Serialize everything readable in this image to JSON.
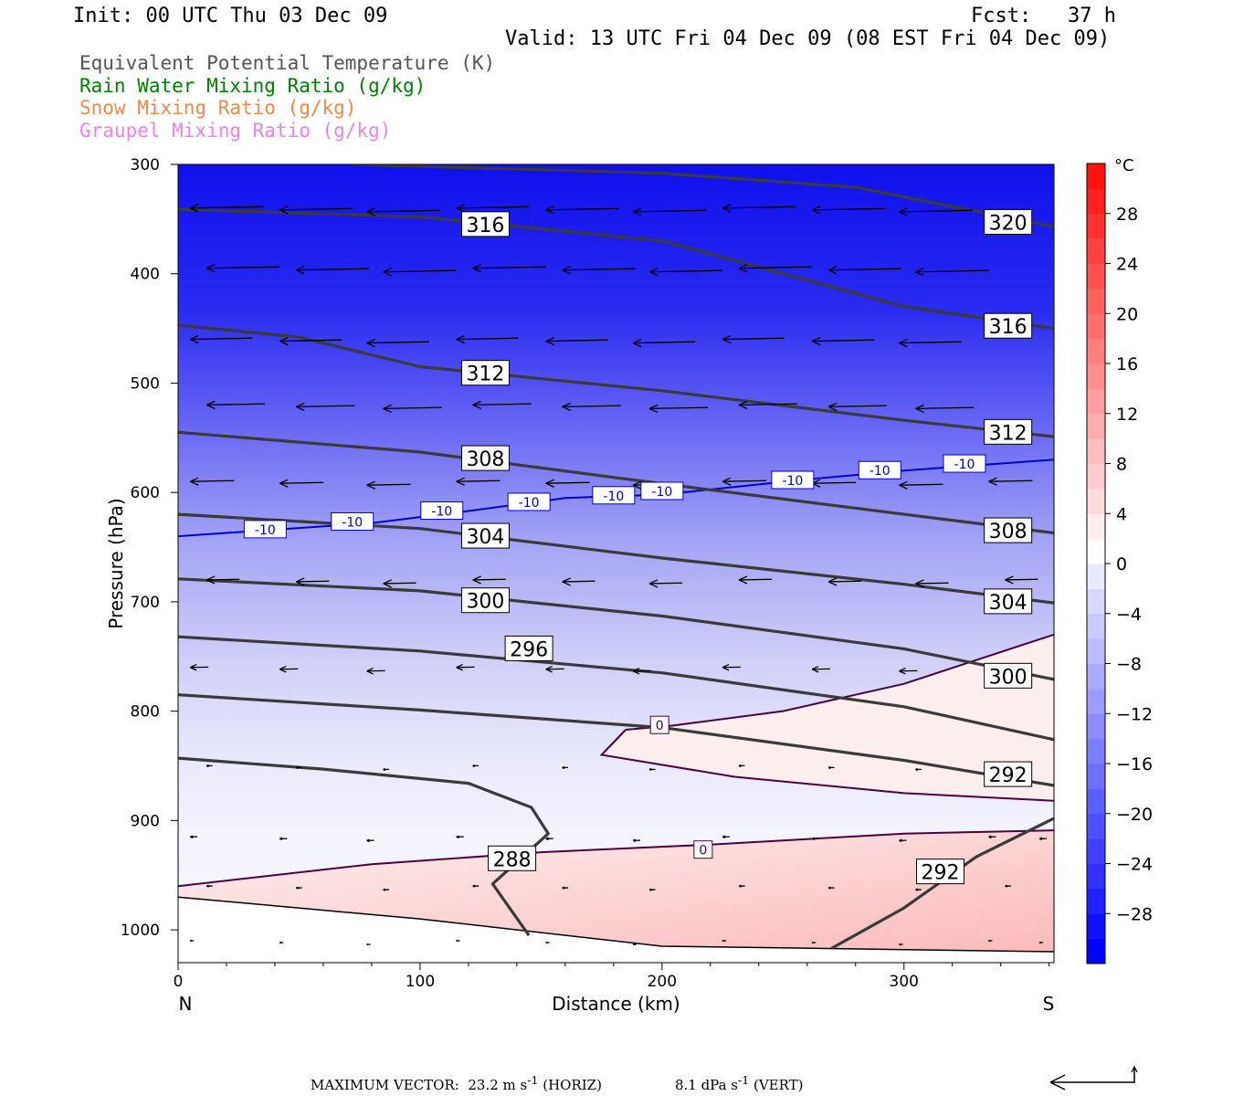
{
  "header": {
    "init": "Init: 00 UTC Thu 03 Dec 09",
    "fcst": "Fcst:   37 h",
    "valid": "Valid: 13 UTC Fri 04 Dec 09 (08 EST Fri 04 Dec 09)"
  },
  "legend": [
    {
      "label": "Equivalent Potential Temperature (K)",
      "color": "#555555"
    },
    {
      "label": "Rain Water Mixing Ratio (g/kg)",
      "color": "#008000"
    },
    {
      "label": "Snow Mixing Ratio (g/kg)",
      "color": "#f08a4b"
    },
    {
      "label": "Graupel Mixing Ratio (g/kg)",
      "color": "#ee82ee"
    }
  ],
  "footer": {
    "max_vector_label": "MAXIMUM VECTOR:",
    "horiz_value": "23.2 m s",
    "horiz_exp": "-1",
    "horiz_tag": "(HORIZ)",
    "vert_value": "8.1 dPa s",
    "vert_exp": "-1",
    "vert_tag": "(VERT)"
  },
  "chart_data": {
    "type": "contour-cross-section",
    "xlabel": "Distance (km)",
    "ylabel": "Pressure (hPa)",
    "xlim": [
      0,
      362
    ],
    "ylim": [
      1030,
      300
    ],
    "xticks": [
      0,
      100,
      200,
      300
    ],
    "yticks": [
      300,
      400,
      500,
      600,
      700,
      800,
      900,
      1000
    ],
    "x_left_label": "N",
    "x_right_label": "S",
    "colorbar": {
      "unit": "°C",
      "labels": [
        28,
        24,
        20,
        16,
        12,
        8,
        4,
        0,
        -4,
        -8,
        -12,
        -16,
        -20,
        -24,
        -28
      ],
      "range": [
        -32,
        32
      ]
    },
    "theta_e_contours": [
      {
        "level": 288,
        "points": [
          [
            0,
            843
          ],
          [
            60,
            853
          ],
          [
            120,
            866
          ],
          [
            146,
            888
          ],
          [
            153,
            912
          ],
          [
            130,
            958
          ],
          [
            145,
            1005
          ]
        ],
        "label_at": [
          138,
          935
        ]
      },
      {
        "level": 292,
        "points": [
          [
            0,
            785
          ],
          [
            100,
            799
          ],
          [
            200,
            815
          ],
          [
            300,
            845
          ],
          [
            362,
            868
          ]
        ],
        "label_at": [
          343,
          858
        ]
      },
      {
        "level": 292,
        "points": [
          [
            362,
            898
          ],
          [
            330,
            933
          ],
          [
            300,
            980
          ],
          [
            270,
            1017
          ]
        ],
        "label_at": [
          315,
          947
        ]
      },
      {
        "level": 296,
        "points": [
          [
            0,
            732
          ],
          [
            100,
            745
          ],
          [
            200,
            765
          ],
          [
            300,
            796
          ],
          [
            362,
            826
          ]
        ],
        "label_at": [
          145,
          743
        ]
      },
      {
        "level": 300,
        "points": [
          [
            0,
            679
          ],
          [
            100,
            690
          ],
          [
            200,
            713
          ],
          [
            300,
            743
          ],
          [
            362,
            771
          ]
        ],
        "label_at": [
          127,
          699
        ]
      },
      {
        "level": 304,
        "points": [
          [
            0,
            620
          ],
          [
            100,
            633
          ],
          [
            200,
            660
          ],
          [
            300,
            684
          ],
          [
            362,
            701
          ]
        ],
        "label_at": [
          127,
          640
        ]
      },
      {
        "level": 308,
        "points": [
          [
            0,
            545
          ],
          [
            100,
            563
          ],
          [
            200,
            592
          ],
          [
            300,
            620
          ],
          [
            362,
            637
          ]
        ],
        "label_at": [
          127,
          569
        ]
      },
      {
        "level": 312,
        "points": [
          [
            0,
            447
          ],
          [
            50,
            458
          ],
          [
            100,
            485
          ],
          [
            200,
            507
          ],
          [
            300,
            534
          ],
          [
            362,
            549
          ]
        ],
        "label_at": [
          127,
          491
        ]
      },
      {
        "level": 316,
        "points": [
          [
            0,
            341
          ],
          [
            100,
            348
          ],
          [
            200,
            370
          ],
          [
            300,
            430
          ],
          [
            362,
            450
          ]
        ],
        "label_at": [
          127,
          355
        ]
      },
      {
        "level": 320,
        "points": [
          [
            72,
            300
          ],
          [
            200,
            308
          ],
          [
            280,
            321
          ],
          [
            362,
            357
          ]
        ],
        "label_at": [
          343,
          353
        ]
      }
    ],
    "theta_e_labels": [
      {
        "text": "316",
        "x": 127,
        "p": 355
      },
      {
        "text": "320",
        "x": 343,
        "p": 353
      },
      {
        "text": "316",
        "x": 343,
        "p": 448
      },
      {
        "text": "312",
        "x": 127,
        "p": 491
      },
      {
        "text": "312",
        "x": 343,
        "p": 545
      },
      {
        "text": "308",
        "x": 127,
        "p": 569
      },
      {
        "text": "308",
        "x": 343,
        "p": 635
      },
      {
        "text": "304",
        "x": 127,
        "p": 640
      },
      {
        "text": "304",
        "x": 343,
        "p": 700
      },
      {
        "text": "300",
        "x": 127,
        "p": 699
      },
      {
        "text": "300",
        "x": 343,
        "p": 768
      },
      {
        "text": "296",
        "x": 145,
        "p": 743
      },
      {
        "text": "292",
        "x": 343,
        "p": 858
      },
      {
        "text": "292",
        "x": 315,
        "p": 947
      },
      {
        "text": "288",
        "x": 138,
        "p": 935
      }
    ],
    "temp_contours": [
      {
        "level": -10,
        "color": "#0000cc",
        "points": [
          [
            0,
            640
          ],
          [
            80,
            628
          ],
          [
            120,
            617
          ],
          [
            160,
            605
          ],
          [
            200,
            602
          ],
          [
            260,
            588
          ],
          [
            300,
            580
          ],
          [
            362,
            570
          ]
        ]
      },
      {
        "level": 0,
        "color": "#4b0040",
        "points": [
          [
            185,
            817
          ],
          [
            205,
            813
          ],
          [
            250,
            800
          ],
          [
            300,
            775
          ],
          [
            362,
            730
          ]
        ]
      },
      {
        "level": 0,
        "color": "#4b0040",
        "points": [
          [
            185,
            817
          ],
          [
            175,
            840
          ],
          [
            230,
            860
          ],
          [
            300,
            875
          ],
          [
            362,
            882
          ]
        ]
      },
      {
        "level": 0,
        "color": "#4b0040",
        "points": [
          [
            0,
            960
          ],
          [
            80,
            940
          ],
          [
            150,
            929
          ],
          [
            220,
            922
          ],
          [
            300,
            912
          ],
          [
            362,
            909
          ]
        ]
      }
    ],
    "temp_labels": [
      {
        "text": "-10",
        "x": 36,
        "p": 634
      },
      {
        "text": "-10",
        "x": 72,
        "p": 627
      },
      {
        "text": "-10",
        "x": 109,
        "p": 617
      },
      {
        "text": "-10",
        "x": 145,
        "p": 609
      },
      {
        "text": "-10",
        "x": 180,
        "p": 603
      },
      {
        "text": "-10",
        "x": 200,
        "p": 599
      },
      {
        "text": "-10",
        "x": 254,
        "p": 589
      },
      {
        "text": "-10",
        "x": 290,
        "p": 580
      },
      {
        "text": "-10",
        "x": 325,
        "p": 574
      },
      {
        "text": "0",
        "x": 199,
        "p": 813
      },
      {
        "text": "0",
        "x": 217,
        "p": 927
      }
    ],
    "wind_rows": [
      {
        "p": 340,
        "speed": 1.0
      },
      {
        "p": 395,
        "speed": 1.0
      },
      {
        "p": 460,
        "speed": 0.85
      },
      {
        "p": 520,
        "speed": 0.8
      },
      {
        "p": 590,
        "speed": 0.6
      },
      {
        "p": 680,
        "speed": 0.45
      },
      {
        "p": 760,
        "speed": 0.25
      },
      {
        "p": 850,
        "speed": 0.08
      },
      {
        "p": 915,
        "speed": 0.1
      },
      {
        "p": 960,
        "speed": 0.08
      },
      {
        "p": 1010,
        "speed": 0.05
      }
    ]
  }
}
